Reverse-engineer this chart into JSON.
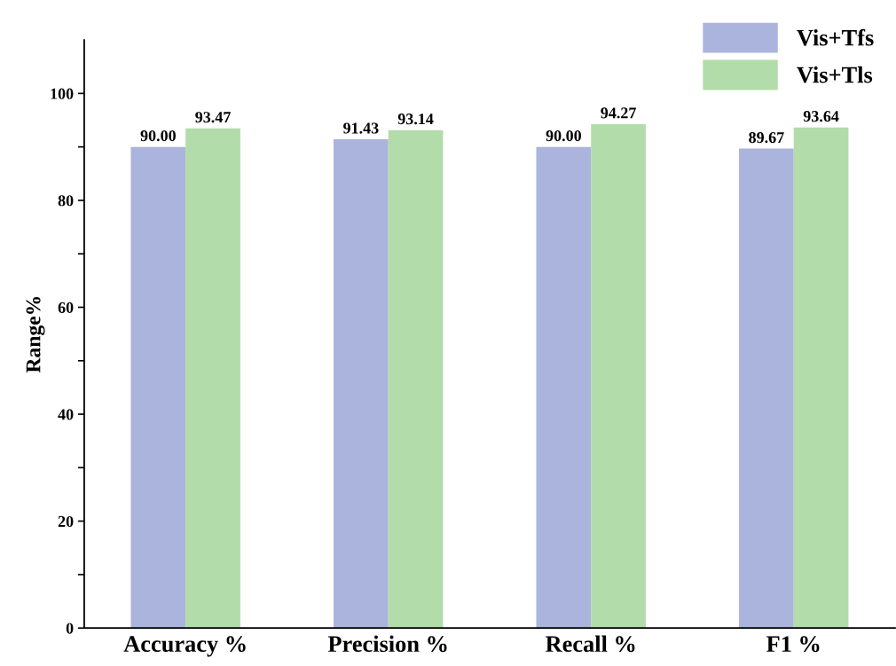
{
  "chart_data": {
    "type": "bar",
    "ylabel": "Range%",
    "categories": [
      "Accuracy %",
      "Precision %",
      "Recall %",
      "F1 %"
    ],
    "series": [
      {
        "name": "Vis+Tfs",
        "color": "#aab4dc",
        "values": [
          90.0,
          91.43,
          90.0,
          89.67
        ],
        "value_labels": [
          "90.00",
          "91.43",
          "90.00",
          "89.67"
        ]
      },
      {
        "name": "Vis+Tls",
        "color": "#b2dcaa",
        "values": [
          93.47,
          93.14,
          94.27,
          93.64
        ],
        "value_labels": [
          "93.47",
          "93.14",
          "94.27",
          "93.64"
        ]
      }
    ],
    "ylim": [
      0,
      110
    ],
    "yticks": [
      0,
      {
        "value": 10,
        "label": null
      },
      20,
      {
        "value": 30,
        "label": null
      },
      40,
      {
        "value": 50,
        "label": null
      },
      60,
      {
        "value": 70,
        "label": null
      },
      80,
      {
        "value": 90,
        "label": null
      },
      100
    ],
    "legend": "top right",
    "grid": false
  }
}
